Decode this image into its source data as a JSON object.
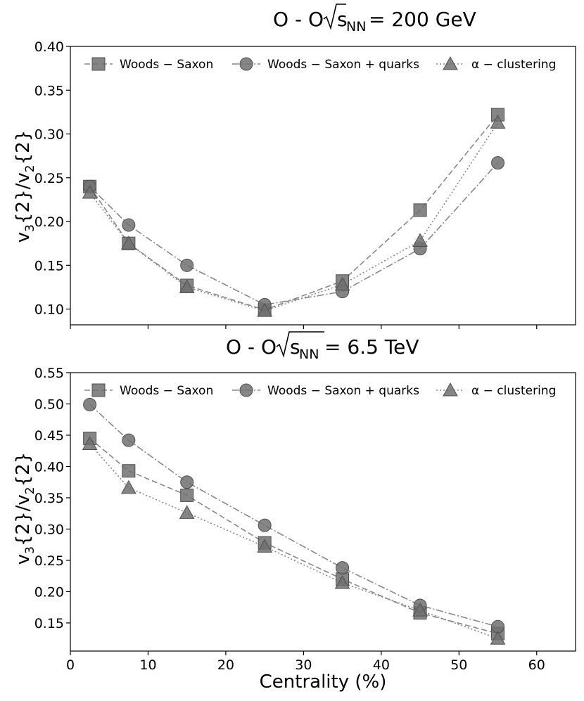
{
  "chart_data": [
    {
      "type": "line",
      "title_prefix": "O - O ",
      "title_radicand": "s",
      "title_subscript": "NN",
      "title_suffix": "= 200 GeV",
      "ylabel": "v3{2}/v2{2}",
      "ylabel_parts": {
        "v1": "v",
        "s1": "3",
        "mid": "{2}/v",
        "s2": "2",
        "end": "{2}"
      },
      "xlim": [
        0,
        65
      ],
      "ylim": [
        0.082,
        0.4
      ],
      "yticks": [
        "0.10",
        "0.15",
        "0.20",
        "0.25",
        "0.30",
        "0.35",
        "0.40"
      ],
      "ytick_values": [
        0.1,
        0.15,
        0.2,
        0.25,
        0.3,
        0.35,
        0.4
      ],
      "x": [
        2.5,
        7.5,
        15,
        25,
        35,
        45,
        55
      ],
      "legend": "top",
      "series": [
        {
          "name": "Woods − Saxon",
          "marker": "square",
          "dash": "8,4",
          "values": [
            0.24,
            0.175,
            0.127,
            0.099,
            0.132,
            0.213,
            0.322
          ]
        },
        {
          "name": "Woods − Saxon + quarks",
          "marker": "circle",
          "dash": "10,3,2,3",
          "values": [
            0.24,
            0.196,
            0.15,
            0.105,
            0.12,
            0.169,
            0.267
          ]
        },
        {
          "name": "α − clustering",
          "marker": "triangle",
          "dash": "2,3",
          "values": [
            0.233,
            0.175,
            0.125,
            0.098,
            0.128,
            0.178,
            0.313
          ]
        }
      ]
    },
    {
      "type": "line",
      "title_prefix": "O - O ",
      "title_radicand": "s",
      "title_subscript": "NN",
      "title_suffix": "= 6.5 TeV",
      "ylabel": "v3{2}/v2{2}",
      "ylabel_parts": {
        "v1": "v",
        "s1": "3",
        "mid": "{2}/v",
        "s2": "2",
        "end": "{2}"
      },
      "xlabel": "Centrality (%)",
      "xlim": [
        0,
        65
      ],
      "ylim": [
        0.105,
        0.55
      ],
      "xticks": [
        "0",
        "10",
        "20",
        "30",
        "40",
        "50",
        "60"
      ],
      "xtick_values": [
        0,
        10,
        20,
        30,
        40,
        50,
        60
      ],
      "yticks": [
        "0.15",
        "0.20",
        "0.25",
        "0.30",
        "0.35",
        "0.40",
        "0.45",
        "0.50",
        "0.55"
      ],
      "ytick_values": [
        0.15,
        0.2,
        0.25,
        0.3,
        0.35,
        0.4,
        0.45,
        0.5,
        0.55
      ],
      "x": [
        2.5,
        7.5,
        15,
        25,
        35,
        45,
        55
      ],
      "legend": "top",
      "series": [
        {
          "name": "Woods − Saxon",
          "marker": "square",
          "dash": "8,4",
          "values": [
            0.445,
            0.393,
            0.354,
            0.278,
            0.22,
            0.166,
            0.133
          ]
        },
        {
          "name": "Woods − Saxon + quarks",
          "marker": "circle",
          "dash": "10,3,2,3",
          "values": [
            0.499,
            0.442,
            0.375,
            0.306,
            0.238,
            0.178,
            0.144
          ]
        },
        {
          "name": "α − clustering",
          "marker": "triangle",
          "dash": "2,3",
          "values": [
            0.436,
            0.366,
            0.326,
            0.272,
            0.214,
            0.17,
            0.125
          ]
        }
      ]
    }
  ]
}
